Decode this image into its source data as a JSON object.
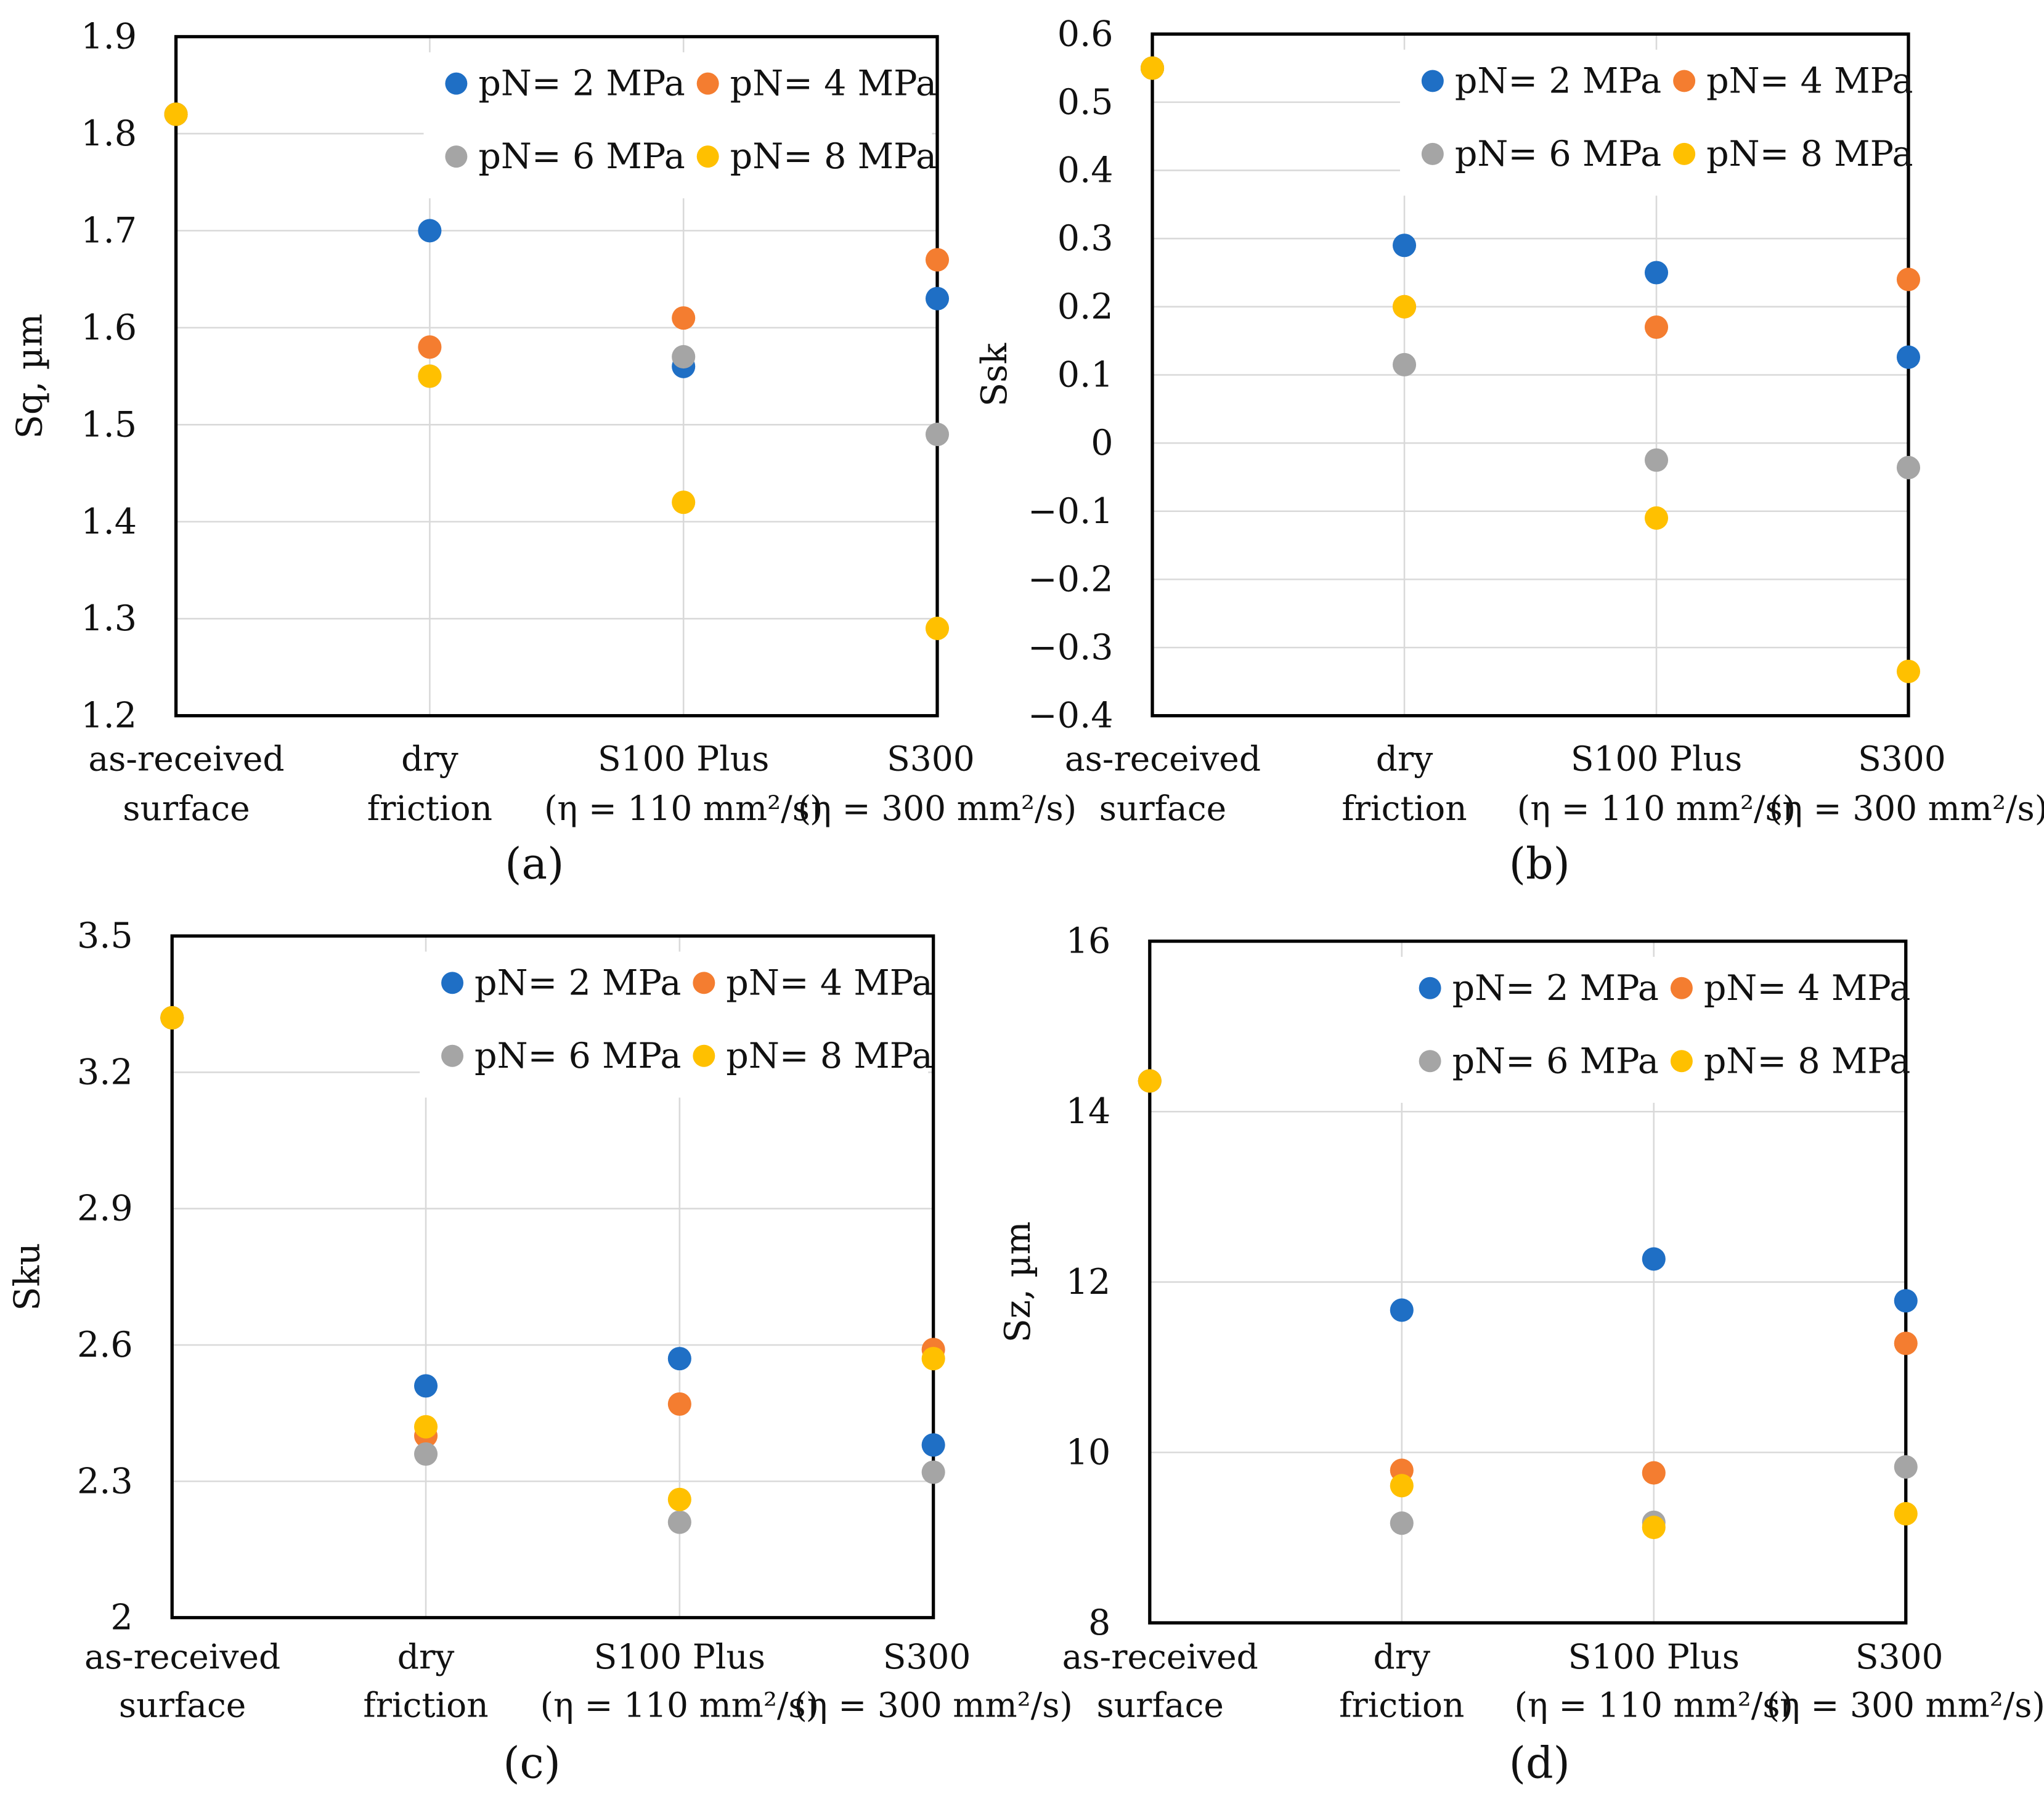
{
  "series_meta": [
    {
      "name": "pN= 2 MPa",
      "color": "#1f6fc5"
    },
    {
      "name": "pN= 4 MPa",
      "color": "#f47d30"
    },
    {
      "name": "pN= 6 MPa",
      "color": "#a5a5a5"
    },
    {
      "name": "pN= 8 MPa",
      "color": "#ffc000"
    }
  ],
  "chart_data": [
    {
      "type": "scatter",
      "panel_label": "(a)",
      "ylabel": "Sq, µm",
      "ylim": [
        1.2,
        1.9
      ],
      "yticks": [
        "1.2",
        "1.3",
        "1.4",
        "1.5",
        "1.6",
        "1.7",
        "1.8",
        "1.9"
      ],
      "categories": [
        [
          "as-received",
          "surface"
        ],
        [
          "dry",
          "friction"
        ],
        [
          "S100 Plus",
          "(η = 110 mm²/s)"
        ],
        [
          "S300",
          "(η = 300 mm²/s)"
        ]
      ],
      "grid": true,
      "legend": "top",
      "series": [
        {
          "name": "pN= 2 MPa",
          "values": [
            1.82,
            1.7,
            1.56,
            1.63
          ]
        },
        {
          "name": "pN= 4 MPa",
          "values": [
            1.82,
            1.58,
            1.61,
            1.67
          ]
        },
        {
          "name": "pN= 6 MPa",
          "values": [
            1.82,
            1.55,
            1.57,
            1.49
          ]
        },
        {
          "name": "pN= 8 MPa",
          "values": [
            1.82,
            1.55,
            1.42,
            1.29
          ]
        }
      ]
    },
    {
      "type": "scatter",
      "panel_label": "(b)",
      "ylabel": "Ssk",
      "ylim": [
        -0.4,
        0.6
      ],
      "yticks": [
        "−0.4",
        "−0.3",
        "−0.2",
        "−0.1",
        "0",
        "0.1",
        "0.2",
        "0.3",
        "0.4",
        "0.5",
        "0.6"
      ],
      "categories": [
        [
          "as-received",
          "surface"
        ],
        [
          "dry",
          "friction"
        ],
        [
          "S100 Plus",
          "(η = 110 mm²/s)"
        ],
        [
          "S300",
          "(η = 300 mm²/s)"
        ]
      ],
      "grid": true,
      "legend": "top",
      "series": [
        {
          "name": "pN= 2 MPa",
          "values": [
            0.55,
            0.29,
            0.25,
            0.126
          ]
        },
        {
          "name": "pN= 4 MPa",
          "values": [
            0.55,
            0.2,
            0.17,
            0.24
          ]
        },
        {
          "name": "pN= 6 MPa",
          "values": [
            0.55,
            0.115,
            -0.025,
            -0.036
          ]
        },
        {
          "name": "pN= 8 MPa",
          "values": [
            0.55,
            0.2,
            -0.11,
            -0.335
          ]
        }
      ]
    },
    {
      "type": "scatter",
      "panel_label": "(c)",
      "ylabel": "Sku",
      "ylim": [
        2.0,
        3.5
      ],
      "yticks": [
        "2",
        "2.3",
        "2.6",
        "2.9",
        "3.2",
        "3.5"
      ],
      "categories": [
        [
          "as-received",
          "surface"
        ],
        [
          "dry",
          "friction"
        ],
        [
          "S100 Plus",
          "(η = 110 mm²/s)"
        ],
        [
          "S300",
          "(η = 300 mm²/s)"
        ]
      ],
      "grid": true,
      "legend": "top",
      "series": [
        {
          "name": "pN= 2 MPa",
          "values": [
            3.32,
            2.51,
            2.57,
            2.38
          ]
        },
        {
          "name": "pN= 4 MPa",
          "values": [
            3.32,
            2.4,
            2.47,
            2.59
          ]
        },
        {
          "name": "pN= 6 MPa",
          "values": [
            3.32,
            2.36,
            2.21,
            2.32
          ]
        },
        {
          "name": "pN= 8 MPa",
          "values": [
            3.32,
            2.42,
            2.26,
            2.57
          ]
        }
      ]
    },
    {
      "type": "scatter",
      "panel_label": "(d)",
      "ylabel": "Sz, µm",
      "ylim": [
        8,
        16
      ],
      "yticks": [
        "8",
        "10",
        "12",
        "14",
        "16"
      ],
      "categories": [
        [
          "as-received",
          "surface"
        ],
        [
          "dry",
          "friction"
        ],
        [
          "S100 Plus",
          "(η = 110 mm²/s)"
        ],
        [
          "S300",
          "(η = 300 mm²/s)"
        ]
      ],
      "grid": true,
      "legend": "top",
      "series": [
        {
          "name": "pN= 2 MPa",
          "values": [
            14.36,
            11.67,
            12.27,
            11.78
          ]
        },
        {
          "name": "pN= 4 MPa",
          "values": [
            14.36,
            9.79,
            9.76,
            11.28
          ]
        },
        {
          "name": "pN= 6 MPa",
          "values": [
            14.36,
            9.17,
            9.18,
            9.83
          ]
        },
        {
          "name": "pN= 8 MPa",
          "values": [
            14.36,
            9.61,
            9.12,
            9.28
          ]
        }
      ]
    }
  ]
}
